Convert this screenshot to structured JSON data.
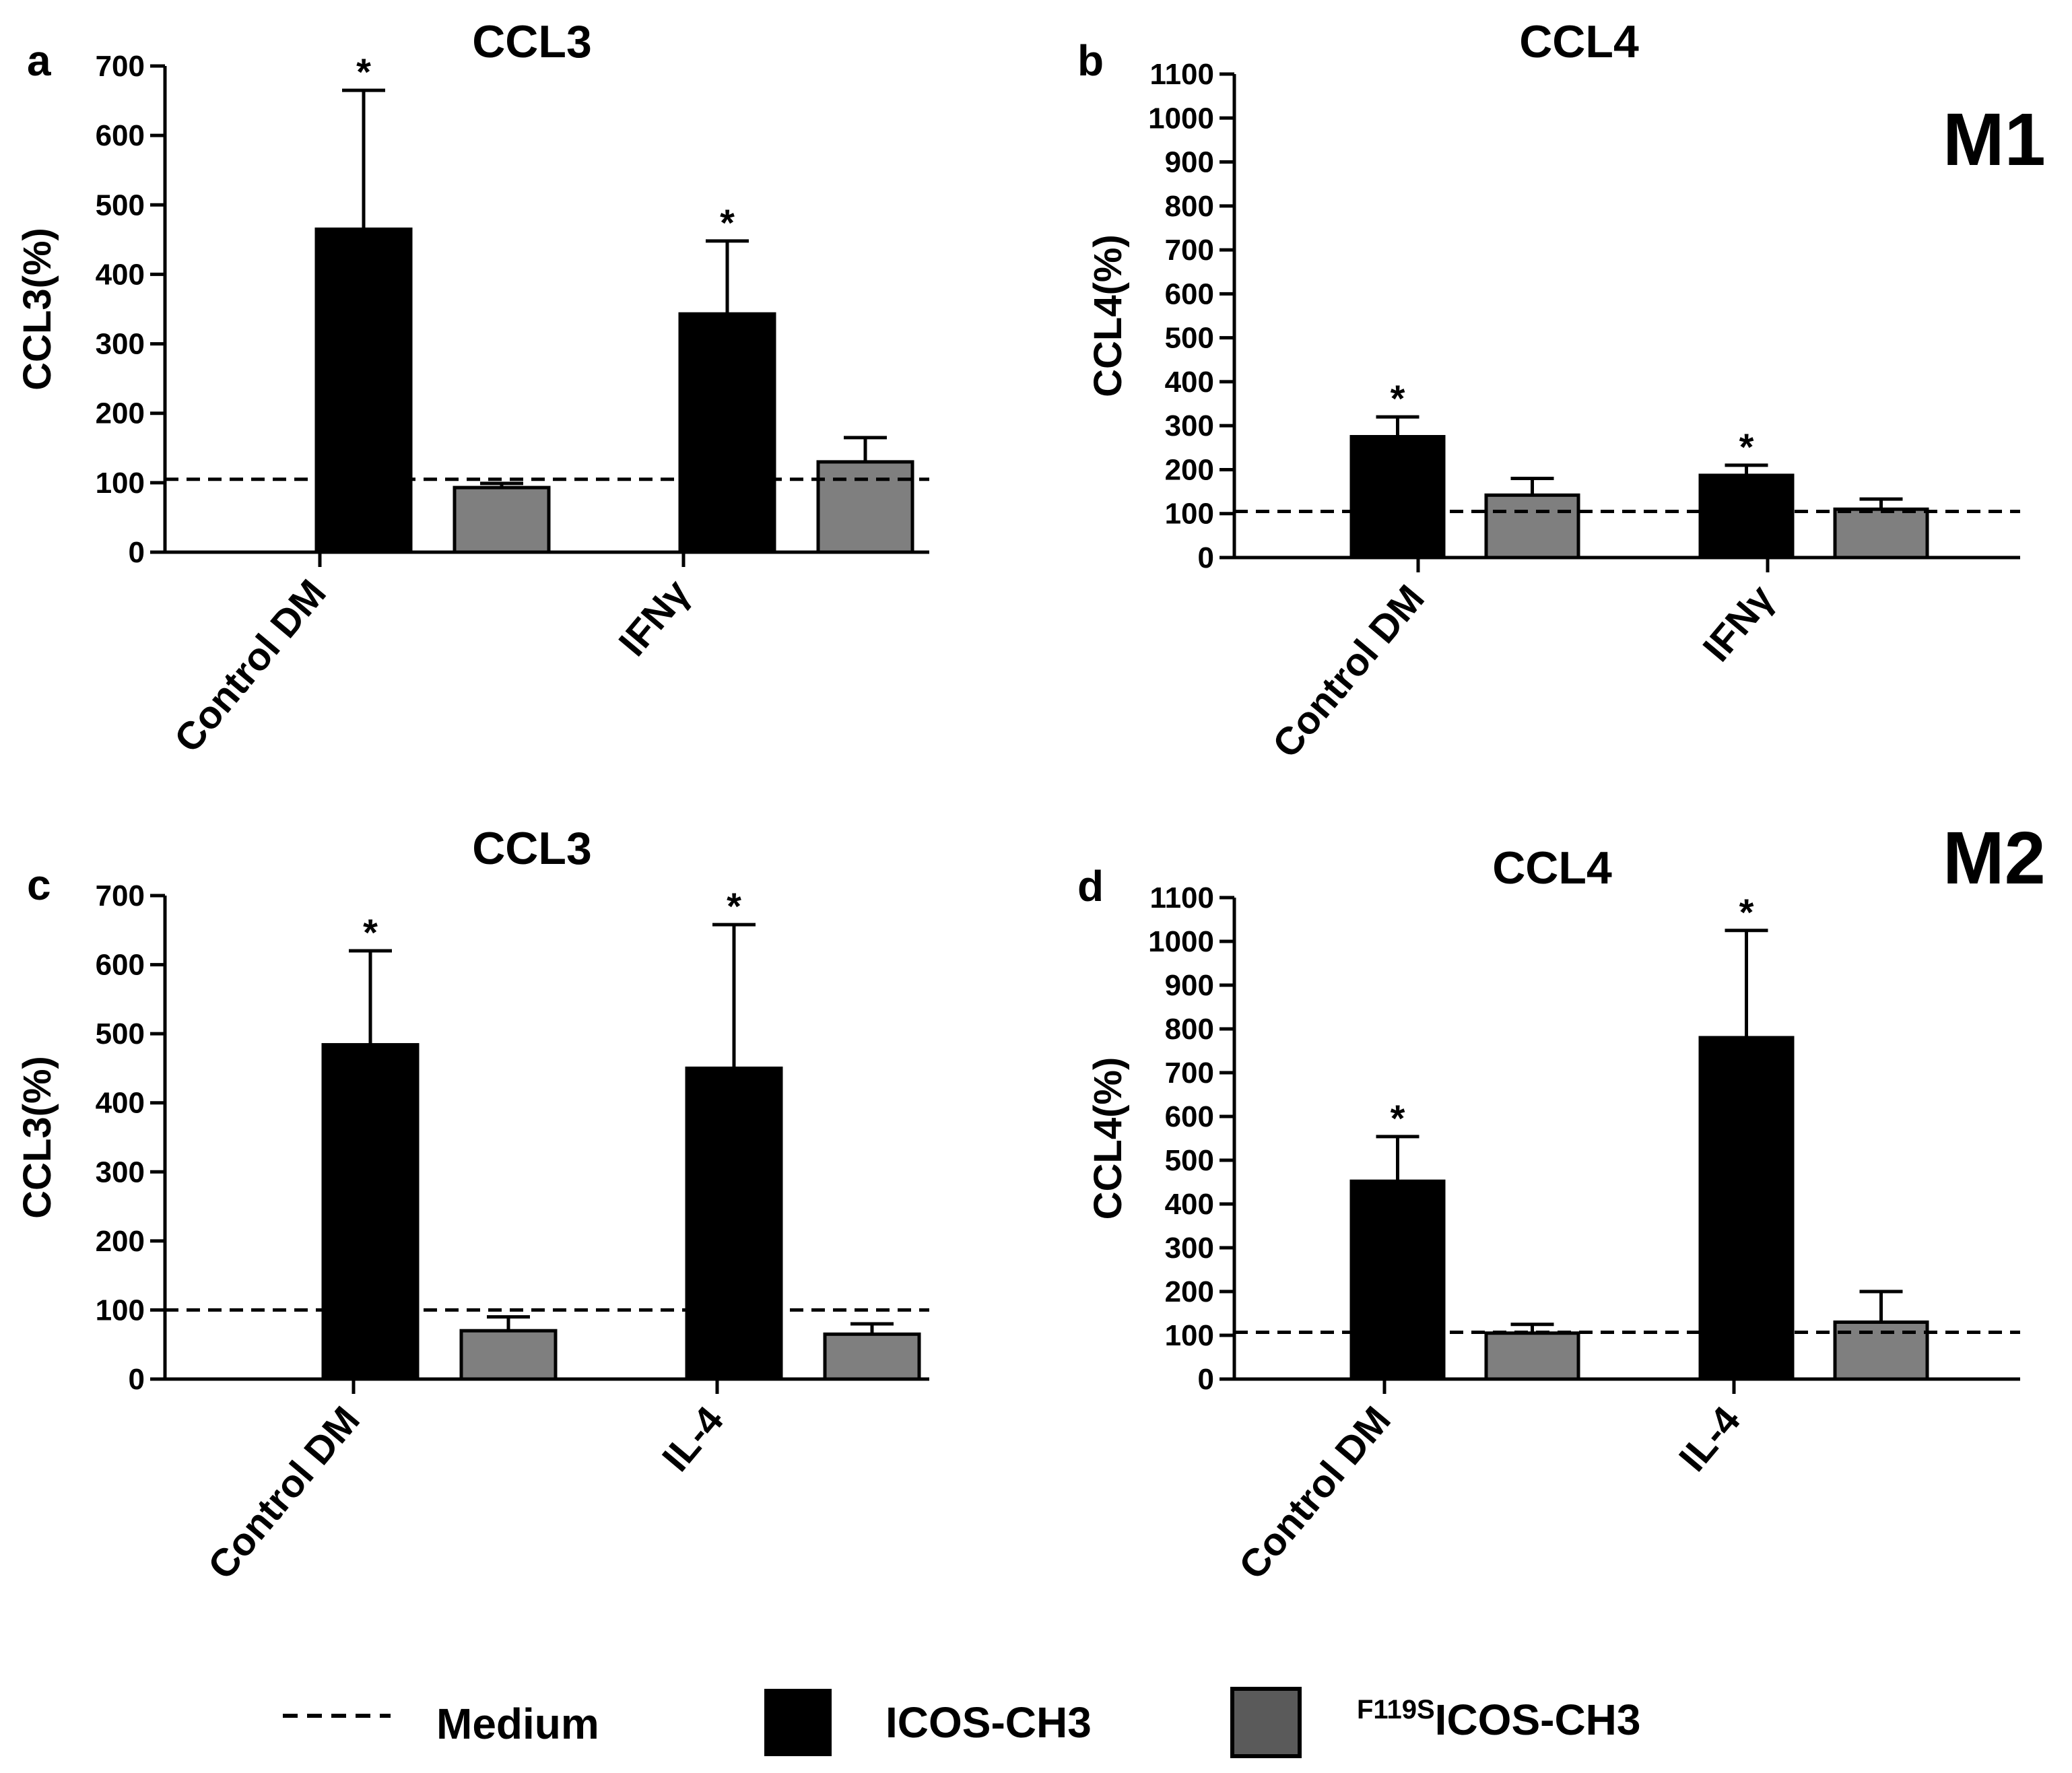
{
  "figure": {
    "group_labels": {
      "m1": "M1",
      "m2": "M2"
    },
    "legend": {
      "medium": "Medium",
      "icos": "ICOS-CH3",
      "f119s_super": "F119S",
      "f119s_main": "ICOS-CH3"
    },
    "colors": {
      "icos": "#000000",
      "f119s": "#7f7f7f",
      "legend_f119s": "#5a5a5a"
    }
  },
  "chart_data": [
    {
      "panel": "a",
      "type": "bar",
      "title": "CCL3",
      "ylabel": "CCL3(%)",
      "ylim": [
        0,
        700
      ],
      "yticks": [
        0,
        100,
        200,
        300,
        400,
        500,
        600,
        700
      ],
      "categories": [
        "Control DM",
        "IFNγ"
      ],
      "series": [
        {
          "name": "ICOS-CH3",
          "values": [
            465,
            343
          ],
          "errors": [
            200,
            105
          ],
          "significant": [
            true,
            true
          ]
        },
        {
          "name": "F119SICOS-CH3",
          "values": [
            93,
            130
          ],
          "errors": [
            6,
            35
          ],
          "significant": [
            false,
            false
          ]
        }
      ],
      "medium": 105,
      "star": "*"
    },
    {
      "panel": "b",
      "type": "bar",
      "title": "CCL4",
      "ylabel": "CCL4(%)",
      "ylim": [
        0,
        1100
      ],
      "yticks": [
        0,
        100,
        200,
        300,
        400,
        500,
        600,
        700,
        800,
        900,
        1000,
        1100
      ],
      "categories": [
        "Control DM",
        "IFNγ"
      ],
      "series": [
        {
          "name": "ICOS-CH3",
          "values": [
            275,
            187
          ],
          "errors": [
            45,
            23
          ],
          "significant": [
            true,
            true
          ]
        },
        {
          "name": "F119SICOS-CH3",
          "values": [
            142,
            110
          ],
          "errors": [
            38,
            23
          ],
          "significant": [
            false,
            false
          ]
        }
      ],
      "medium": 105,
      "star": "*"
    },
    {
      "panel": "c",
      "type": "bar",
      "title": "CCL3",
      "ylabel": "CCL3(%)",
      "ylim": [
        0,
        700
      ],
      "yticks": [
        0,
        100,
        200,
        300,
        400,
        500,
        600,
        700
      ],
      "categories": [
        "Control DM",
        "IL-4"
      ],
      "series": [
        {
          "name": "ICOS-CH3",
          "values": [
            484,
            450
          ],
          "errors": [
            136,
            208
          ],
          "significant": [
            true,
            true
          ]
        },
        {
          "name": "F119SICOS-CH3",
          "values": [
            70,
            65
          ],
          "errors": [
            20,
            15
          ],
          "significant": [
            false,
            false
          ]
        }
      ],
      "medium": 100,
      "star": "*"
    },
    {
      "panel": "d",
      "type": "bar",
      "title": "CCL4",
      "ylabel": "CCL4(%)",
      "ylim": [
        0,
        1100
      ],
      "yticks": [
        0,
        100,
        200,
        300,
        400,
        500,
        600,
        700,
        800,
        900,
        1000,
        1100
      ],
      "categories": [
        "Control DM",
        "IL-4"
      ],
      "series": [
        {
          "name": "ICOS-CH3",
          "values": [
            452,
            780
          ],
          "errors": [
            102,
            245
          ],
          "significant": [
            true,
            true
          ]
        },
        {
          "name": "F119SICOS-CH3",
          "values": [
            105,
            130
          ],
          "errors": [
            20,
            70
          ],
          "significant": [
            false,
            false
          ]
        }
      ],
      "medium": 107,
      "star": "*"
    }
  ]
}
